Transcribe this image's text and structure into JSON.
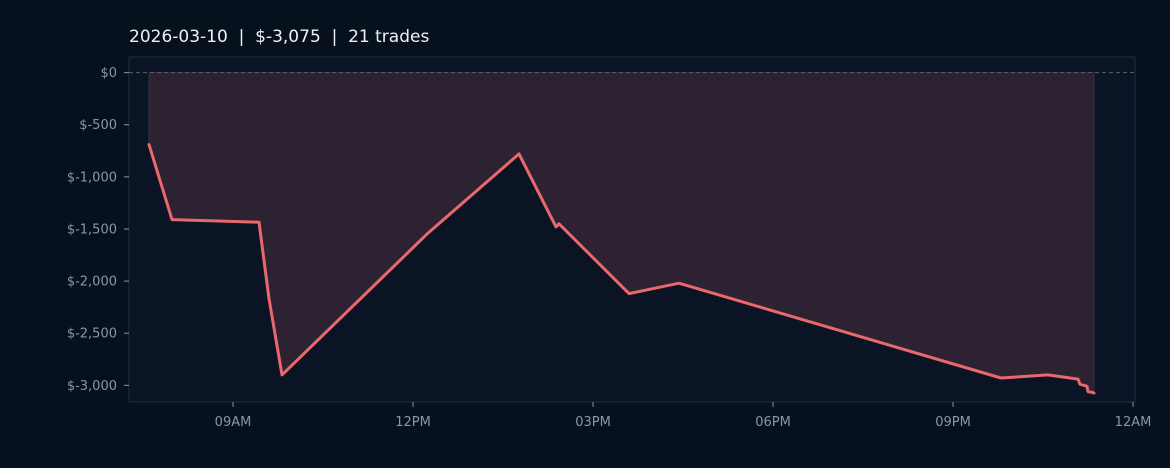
{
  "chart_data": {
    "type": "line",
    "title": "2026-03-10  |  $-3,075  |  21 trades",
    "xlabel": "",
    "ylabel": "",
    "x_ticks": [
      "09AM",
      "12PM",
      "03PM",
      "06PM",
      "09PM",
      "12AM"
    ],
    "y_ticks": [
      "$0",
      "$-500",
      "$-1,000",
      "$-1,500",
      "$-2,000",
      "$-2,500",
      "$-3,000"
    ],
    "y_tick_values": [
      0,
      -500,
      -1000,
      -1500,
      -2000,
      -2500,
      -3000
    ],
    "ylim": [
      -3160,
      150
    ],
    "xlim": [
      "2026-03-10 07:16",
      "2026-03-11 00:02"
    ],
    "grid": false,
    "zero_line": true,
    "series": [
      {
        "points": [
          {
            "x": "2026-03-10 07:36",
            "y": -690
          },
          {
            "x": "2026-03-10 07:59",
            "y": -1410
          },
          {
            "x": "2026-03-10 09:26",
            "y": -1435
          },
          {
            "x": "2026-03-10 09:36",
            "y": -2170
          },
          {
            "x": "2026-03-10 09:49",
            "y": -2900
          },
          {
            "x": "2026-03-10 12:15",
            "y": -1540
          },
          {
            "x": "2026-03-10 13:46",
            "y": -780
          },
          {
            "x": "2026-03-10 14:23",
            "y": -1480
          },
          {
            "x": "2026-03-10 14:26",
            "y": -1450
          },
          {
            "x": "2026-03-10 15:36",
            "y": -2120
          },
          {
            "x": "2026-03-10 16:26",
            "y": -2020
          },
          {
            "x": "2026-03-10 21:48",
            "y": -2930
          },
          {
            "x": "2026-03-10 22:35",
            "y": -2900
          },
          {
            "x": "2026-03-10 23:05",
            "y": -2940
          },
          {
            "x": "2026-03-10 23:07",
            "y": -2990
          },
          {
            "x": "2026-03-10 23:11",
            "y": -3000
          },
          {
            "x": "2026-03-10 23:14",
            "y": -3010
          },
          {
            "x": "2026-03-10 23:15",
            "y": -3060
          },
          {
            "x": "2026-03-10 23:18",
            "y": -3065
          },
          {
            "x": "2026-03-10 23:21",
            "y": -3075
          }
        ]
      }
    ],
    "colors": {
      "line": "#e8686c",
      "area": "#2c2231",
      "plot_bg": "#0b1424",
      "plot_border": "#1f2d40",
      "zero_line": "#56626f"
    }
  }
}
